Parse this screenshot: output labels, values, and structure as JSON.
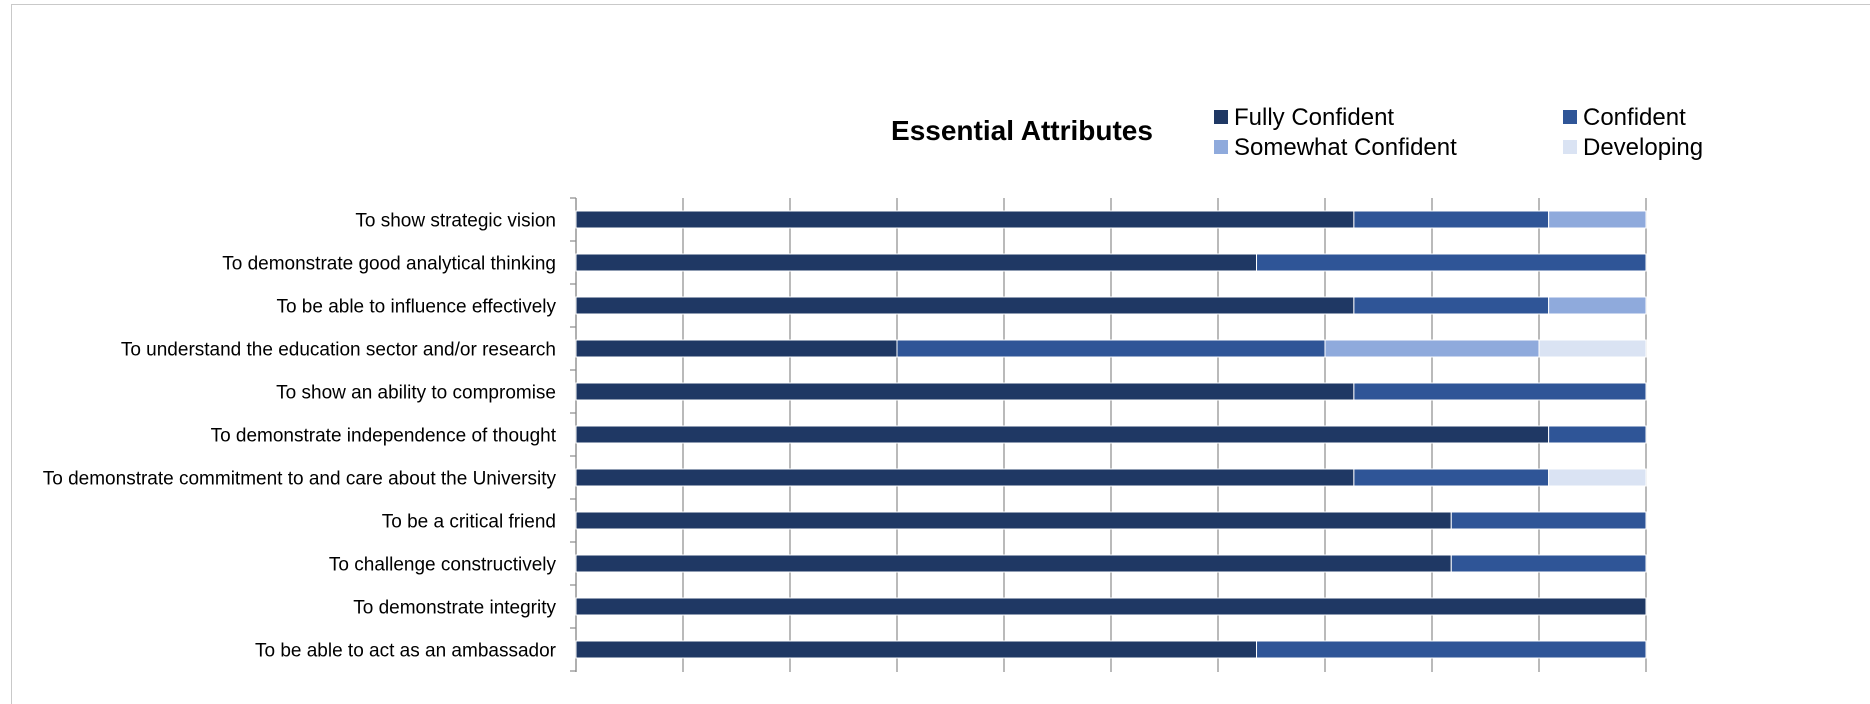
{
  "chart_data": {
    "type": "bar",
    "orientation": "horizontal",
    "stacked": "percent",
    "title": "Essential Attributes",
    "xlim": [
      0,
      100
    ],
    "grid": true,
    "legend_position": "top-right",
    "categories": [
      "To show strategic vision",
      "To demonstrate good analytical thinking",
      "To be able to influence effectively",
      "To understand the education sector and/or research",
      "To show an ability to compromise",
      "To demonstrate independence of thought",
      "To demonstrate commitment to and care about the University",
      "To be a critical friend",
      "To challenge constructively",
      "To demonstrate integrity",
      "To be able to act as an ambassador"
    ],
    "series": [
      {
        "name": "Fully Confident",
        "color": "#1f3864",
        "values": [
          72.7,
          63.6,
          72.7,
          30,
          72.7,
          90.9,
          72.7,
          81.8,
          81.8,
          100,
          63.6
        ]
      },
      {
        "name": "Confident",
        "color": "#2f5597",
        "values": [
          18.2,
          36.4,
          18.2,
          40,
          27.3,
          9.1,
          18.2,
          18.2,
          18.2,
          0,
          36.4
        ]
      },
      {
        "name": "Somewhat Confident",
        "color": "#8faadc",
        "values": [
          9.1,
          0,
          9.1,
          20,
          0,
          0,
          0,
          0,
          0,
          0,
          0
        ]
      },
      {
        "name": "Developing",
        "color": "#dae3f3",
        "values": [
          0,
          0,
          0,
          10,
          0,
          0,
          9.1,
          0,
          0,
          0,
          0
        ]
      }
    ]
  }
}
